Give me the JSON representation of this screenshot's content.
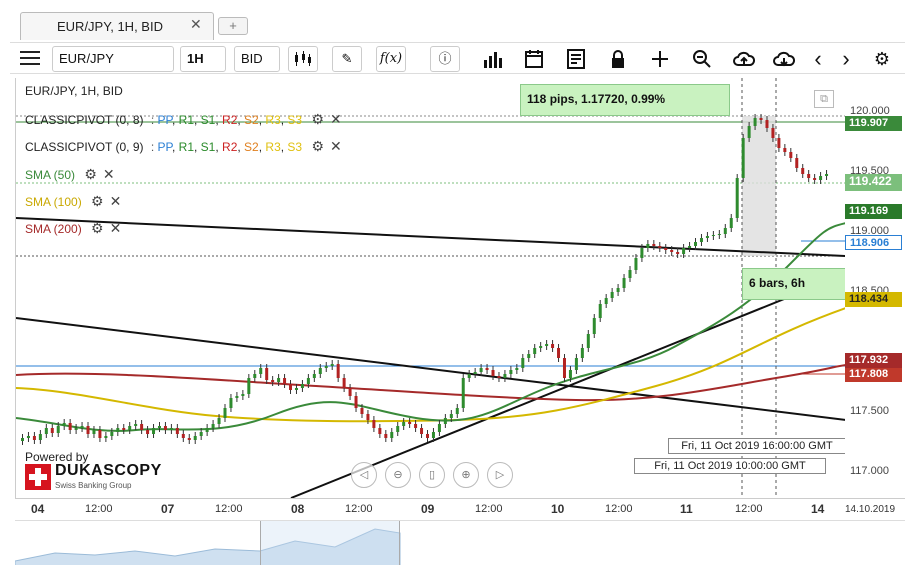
{
  "tab": {
    "label": "EUR/JPY, 1H, BID",
    "close": "✕",
    "add": "+"
  },
  "toolbar": {
    "instrument": "EUR/JPY",
    "period": "1H",
    "side": "BID",
    "icons": [
      "menu-icon",
      "candles-icon",
      "pen-icon",
      "fx-icon",
      "info-icon",
      "bars-icon",
      "calendar-icon",
      "report-icon",
      "lock-icon",
      "crosshair-icon",
      "zoom-icon",
      "cloud-upload-icon",
      "cloud-download-icon",
      "prev-icon",
      "next-icon",
      "gear-icon"
    ],
    "fx_label": "f(x)",
    "prev": "‹",
    "next": "›"
  },
  "chart_header": {
    "title": "EUR/JPY, 1H, BID"
  },
  "legend": {
    "pivot1": {
      "name": "CLASSICPIVOT (0, 8)",
      "sep": ":",
      "levels": [
        "PP",
        "R1",
        "S1",
        "R2",
        "S2",
        "R3",
        "S3"
      ]
    },
    "pivot2": {
      "name": "CLASSICPIVOT (0, 9)",
      "sep": ":",
      "levels": [
        "PP",
        "R1",
        "S1",
        "R2",
        "S2",
        "R3",
        "S3"
      ]
    },
    "sma50": "SMA (50)",
    "sma100": "SMA (100)",
    "sma200": "SMA (200)",
    "colors": {
      "sma50": "#3a8a3a",
      "sma100": "#d4b800",
      "sma200": "#a52a2a"
    }
  },
  "measure": {
    "pips": "118 pips, 1.17720, 0.99%",
    "bars": "6 bars, 6h"
  },
  "date_tags": {
    "upper": "Fri, 11 Oct 2019 16:00:00 GMT",
    "lower": "Fri, 11 Oct 2019 10:00:00 GMT"
  },
  "branding": {
    "powered": "Powered by",
    "brand": "DUKASCOPY",
    "sub": "Swiss Banking Group"
  },
  "price_axis": {
    "labels": [
      "120.000",
      "119.500",
      "119.000",
      "118.500",
      "117.500",
      "117.000"
    ],
    "tags": [
      {
        "value": "119.907",
        "color": "#3a8a3a"
      },
      {
        "value": "119.422",
        "color": "#7cbf7c"
      },
      {
        "value": "119.169",
        "color": "#2a7a2a"
      },
      {
        "value": "118.906",
        "color": "#2a7fd4"
      },
      {
        "value": "118.434",
        "color": "#d4b800"
      },
      {
        "value": "117.932",
        "color": "#a52a2a"
      },
      {
        "value": "117.808",
        "color": "#c0392b"
      }
    ]
  },
  "time_axis": {
    "labels": [
      "04",
      "12:00",
      "07",
      "12:00",
      "08",
      "12:00",
      "09",
      "12:00",
      "10",
      "12:00",
      "11",
      "12:00",
      "14"
    ],
    "end_date": "14.10.2019"
  }
}
